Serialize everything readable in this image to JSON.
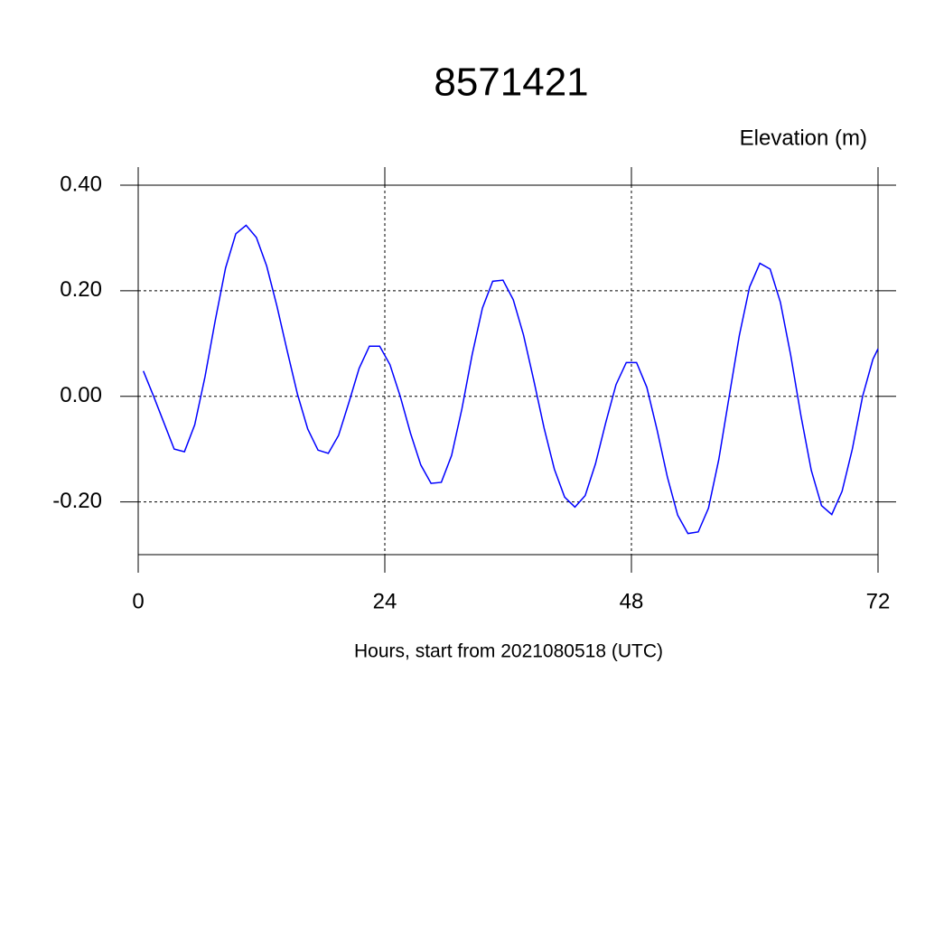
{
  "chart_data": {
    "type": "line",
    "title": "8571421",
    "y_label": "Elevation (m)",
    "x_label": "Hours, start from 2021080518 (UTC)",
    "xlim": [
      0,
      72
    ],
    "xticks": [
      0,
      24,
      48,
      72
    ],
    "ylim": [
      -0.3,
      0.4
    ],
    "yticks": [
      {
        "value": 0.4,
        "label": "0.40"
      },
      {
        "value": 0.2,
        "label": "0.20"
      },
      {
        "value": 0,
        "label": "0.00"
      },
      {
        "value": -0.2,
        "label": "-0.20"
      }
    ],
    "grid": true,
    "x": [
      0.5,
      1.5,
      2.5,
      3.5,
      4.5,
      5.5,
      6.5,
      7.5,
      8.5,
      9.5,
      10.5,
      11.5,
      12.5,
      13.5,
      14.5,
      15.5,
      16.5,
      17.5,
      18.5,
      19.5,
      20.5,
      21.5,
      22.5,
      23.5,
      24.5,
      25.5,
      26.5,
      27.5,
      28.5,
      29.5,
      30.5,
      31.5,
      32.5,
      33.5,
      34.5,
      35.5,
      36.5,
      37.5,
      38.5,
      39.5,
      40.5,
      41.5,
      42.5,
      43.5,
      44.5,
      45.5,
      46.5,
      47.5,
      48.5,
      49.5,
      50.5,
      51.5,
      52.5,
      53.5,
      54.5,
      55.5,
      56.5,
      57.5,
      58.5,
      59.5,
      60.5,
      61.5,
      62.5,
      63.5,
      64.5,
      65.5,
      66.5,
      67.5,
      68.5,
      69.5,
      70.5,
      71.5,
      72
    ],
    "series": [
      {
        "name": "Elevation",
        "color": "#0000ff",
        "values": [
          0.048,
          0.0,
          -0.05,
          -0.1,
          -0.105,
          -0.054,
          0.037,
          0.144,
          0.243,
          0.308,
          0.324,
          0.301,
          0.247,
          0.171,
          0.086,
          0.004,
          -0.062,
          -0.102,
          -0.108,
          -0.074,
          -0.012,
          0.053,
          0.095,
          0.095,
          0.06,
          0.0,
          -0.07,
          -0.13,
          -0.165,
          -0.163,
          -0.112,
          -0.024,
          0.079,
          0.167,
          0.218,
          0.22,
          0.183,
          0.116,
          0.03,
          -0.06,
          -0.138,
          -0.191,
          -0.21,
          -0.188,
          -0.128,
          -0.05,
          0.022,
          0.064,
          0.064,
          0.017,
          -0.064,
          -0.153,
          -0.225,
          -0.26,
          -0.257,
          -0.212,
          -0.12,
          -0.002,
          0.115,
          0.207,
          0.252,
          0.241,
          0.178,
          0.078,
          -0.037,
          -0.14,
          -0.207,
          -0.224,
          -0.18,
          -0.1,
          0.0,
          0.07,
          0.09
        ]
      }
    ]
  }
}
